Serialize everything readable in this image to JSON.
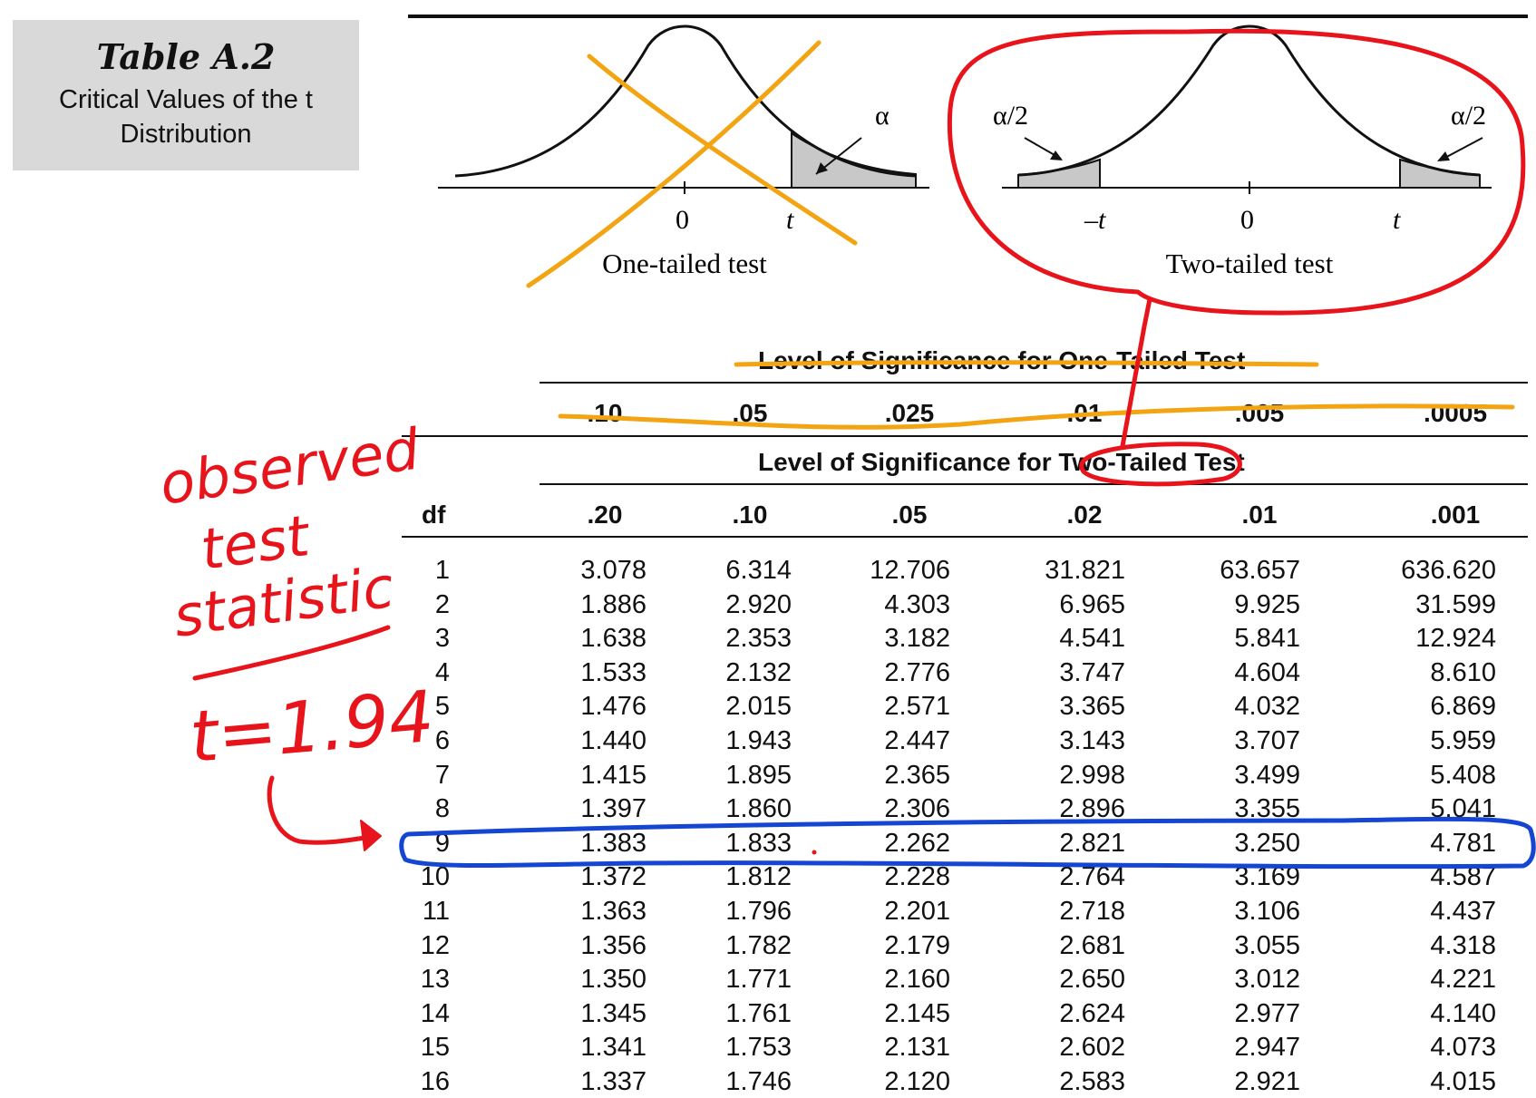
{
  "title": {
    "label": "Table A.2",
    "subtitle": "Critical Values of the t Distribution"
  },
  "diagram_one": {
    "alpha": "α",
    "zero": "0",
    "t": "t",
    "caption": "One-tailed test"
  },
  "diagram_two": {
    "alpha_left": "α/2",
    "alpha_right": "α/2",
    "neg_t": "–t",
    "zero": "0",
    "t": "t",
    "caption": "Two-tailed test"
  },
  "table": {
    "one_tailed_header": "Level of Significance for One-Tailed Test",
    "one_tailed_levels": [
      ".10",
      ".05",
      ".025",
      ".01",
      ".005",
      ".0005"
    ],
    "two_tailed_header": "Level of Significance for Two-Tailed Test",
    "df_header": "df",
    "two_tailed_levels": [
      ".20",
      ".10",
      ".05",
      ".02",
      ".01",
      ".001"
    ],
    "rows": [
      {
        "df": "1",
        "values": [
          "3.078",
          "6.314",
          "12.706",
          "31.821",
          "63.657",
          "636.620"
        ]
      },
      {
        "df": "2",
        "values": [
          "1.886",
          "2.920",
          "4.303",
          "6.965",
          "9.925",
          "31.599"
        ]
      },
      {
        "df": "3",
        "values": [
          "1.638",
          "2.353",
          "3.182",
          "4.541",
          "5.841",
          "12.924"
        ]
      },
      {
        "df": "4",
        "values": [
          "1.533",
          "2.132",
          "2.776",
          "3.747",
          "4.604",
          "8.610"
        ]
      },
      {
        "df": "5",
        "values": [
          "1.476",
          "2.015",
          "2.571",
          "3.365",
          "4.032",
          "6.869"
        ]
      },
      {
        "df": "6",
        "values": [
          "1.440",
          "1.943",
          "2.447",
          "3.143",
          "3.707",
          "5.959"
        ]
      },
      {
        "df": "7",
        "values": [
          "1.415",
          "1.895",
          "2.365",
          "2.998",
          "3.499",
          "5.408"
        ]
      },
      {
        "df": "8",
        "values": [
          "1.397",
          "1.860",
          "2.306",
          "2.896",
          "3.355",
          "5.041"
        ]
      },
      {
        "df": "9",
        "values": [
          "1.383",
          "1.833",
          "2.262",
          "2.821",
          "3.250",
          "4.781"
        ]
      },
      {
        "df": "10",
        "values": [
          "1.372",
          "1.812",
          "2.228",
          "2.764",
          "3.169",
          "4.587"
        ]
      },
      {
        "df": "11",
        "values": [
          "1.363",
          "1.796",
          "2.201",
          "2.718",
          "3.106",
          "4.437"
        ]
      },
      {
        "df": "12",
        "values": [
          "1.356",
          "1.782",
          "2.179",
          "2.681",
          "3.055",
          "4.318"
        ]
      },
      {
        "df": "13",
        "values": [
          "1.350",
          "1.771",
          "2.160",
          "2.650",
          "3.012",
          "4.221"
        ]
      },
      {
        "df": "14",
        "values": [
          "1.345",
          "1.761",
          "2.145",
          "2.624",
          "2.977",
          "4.140"
        ]
      },
      {
        "df": "15",
        "values": [
          "1.341",
          "1.753",
          "2.131",
          "2.602",
          "2.947",
          "4.073"
        ]
      },
      {
        "df": "16",
        "values": [
          "1.337",
          "1.746",
          "2.120",
          "2.583",
          "2.921",
          "4.015"
        ]
      }
    ]
  },
  "annotations": {
    "note_line1": "observed",
    "note_line2": "test",
    "note_line3": "statistic",
    "t_value": "t=1.94",
    "colors": {
      "red": "#e8141c",
      "orange": "#f2a413",
      "blue": "#1446d2"
    }
  }
}
